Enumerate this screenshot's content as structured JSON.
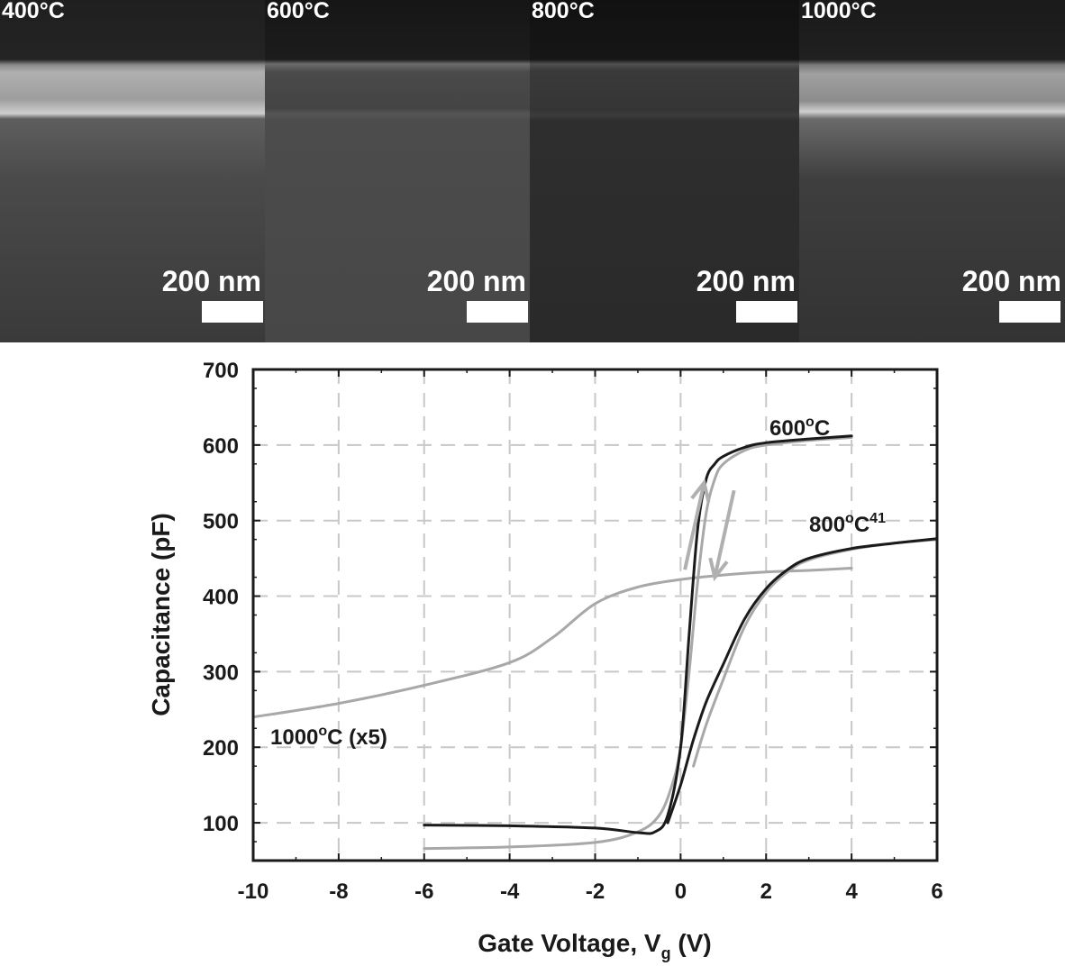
{
  "sem_panels": [
    {
      "label": "400°C",
      "scale_label": "200 nm"
    },
    {
      "label": "600°C",
      "scale_label": "200 nm"
    },
    {
      "label": "800°C",
      "scale_label": "200 nm"
    },
    {
      "label": "1000°C",
      "scale_label": "200 nm"
    }
  ],
  "chart_data": {
    "type": "line",
    "xlabel_main": "Gate Voltage, V",
    "xlabel_sub": "g",
    "xlabel_tail": " (V)",
    "ylabel": "Capacitance (pF)",
    "xlim": [
      -10,
      6
    ],
    "ylim": [
      50,
      700
    ],
    "x_ticks": [
      -10,
      -8,
      -6,
      -4,
      -2,
      0,
      2,
      4,
      6
    ],
    "y_ticks": [
      100,
      200,
      300,
      400,
      500,
      600,
      700
    ],
    "grid": true,
    "colors": {
      "dark": "#1a1a1a",
      "light": "#a8a8a8"
    },
    "series": [
      {
        "name": "600°C",
        "color": "#1a1a1a",
        "x": [
          -6,
          -4,
          -2,
          -1,
          -0.6,
          -0.3,
          0,
          0.2,
          0.4,
          0.6,
          0.8,
          1,
          1.5,
          2,
          3,
          4
        ],
        "y": [
          97,
          96,
          93,
          87,
          88,
          110,
          200,
          350,
          490,
          555,
          575,
          585,
          597,
          603,
          608,
          612
        ]
      },
      {
        "name": "",
        "color": "#a8a8a8",
        "x": [
          -6,
          -4,
          -2,
          -1,
          -0.5,
          -0.2,
          0,
          0.2,
          0.4,
          0.6,
          0.8,
          1,
          1.5,
          2,
          3,
          4
        ],
        "y": [
          66,
          68,
          74,
          88,
          110,
          150,
          200,
          300,
          420,
          510,
          555,
          575,
          593,
          600,
          606,
          610
        ]
      },
      {
        "name": "800°C",
        "superscript": "41",
        "color": "#1a1a1a",
        "x": [
          -0.3,
          0,
          0.3,
          0.6,
          1,
          1.5,
          2,
          2.5,
          3,
          4,
          5,
          6
        ],
        "y": [
          100,
          150,
          210,
          260,
          310,
          370,
          410,
          435,
          450,
          463,
          470,
          476
        ]
      },
      {
        "name": "",
        "color": "#a8a8a8",
        "x": [
          0.3,
          0.6,
          1,
          1.5,
          2,
          2.5,
          3,
          4,
          5,
          6
        ],
        "y": [
          175,
          230,
          290,
          360,
          405,
          432,
          448,
          462,
          470,
          475
        ]
      },
      {
        "name": "1000°C (x5)",
        "color": "#a8a8a8",
        "x": [
          -10,
          -8,
          -6,
          -4,
          -3,
          -2,
          -1,
          0,
          1,
          2,
          3,
          4
        ],
        "y": [
          240,
          258,
          282,
          312,
          345,
          390,
          412,
          422,
          428,
          432,
          434,
          437
        ]
      }
    ],
    "annotations": {
      "arrow_up": {
        "x": [
          0.1,
          0.55
        ],
        "y": [
          435,
          550
        ]
      },
      "arrow_down": {
        "x": [
          1.25,
          0.8
        ],
        "y": [
          540,
          425
        ]
      }
    }
  }
}
